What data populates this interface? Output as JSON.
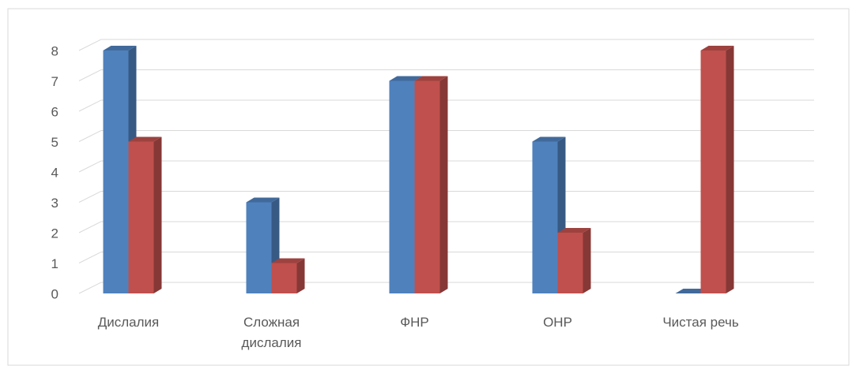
{
  "chart_data": {
    "type": "bar3d",
    "categories": [
      "Дислалия",
      "Сложная дислалия",
      "ФНР",
      "ОНР",
      "Чистая речь"
    ],
    "series": [
      {
        "color": "#4f81bd",
        "values": [
          8,
          3,
          7,
          5,
          0
        ]
      },
      {
        "color": "#c0504d",
        "values": [
          5,
          1,
          7,
          2,
          8
        ]
      }
    ],
    "ylim": [
      0,
      8
    ],
    "yticks": [
      0,
      1,
      2,
      3,
      4,
      5,
      6,
      7,
      8
    ],
    "grid": true
  }
}
